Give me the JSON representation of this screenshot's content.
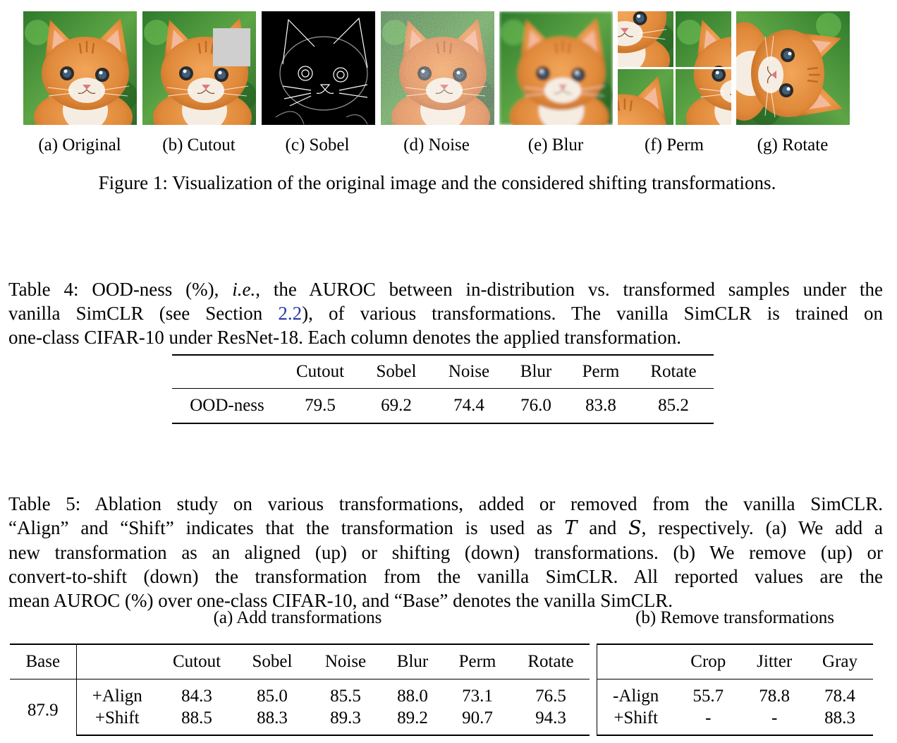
{
  "figure1": {
    "subcaptions": [
      "(a) Original",
      "(b) Cutout",
      "(c) Sobel",
      "(d) Noise",
      "(e) Blur",
      "(f) Perm",
      "(g) Rotate"
    ],
    "caption": "Figure 1: Visualization of the original image and the considered shifting transformations."
  },
  "table4": {
    "caption_lines": [
      [
        "Table 4: OOD-ness (%), ",
        "i.e.",
        ", the AUROC between in-distribution vs. transformed samples under the"
      ],
      [
        "vanilla SimCLR (see Section ",
        "2.2",
        "), of various transformations. The vanilla SimCLR is trained on"
      ],
      [
        "one-class CIFAR-10 under ResNet-18. Each column denotes the applied transformation."
      ]
    ],
    "headers": [
      "",
      "Cutout",
      "Sobel",
      "Noise",
      "Blur",
      "Perm",
      "Rotate"
    ],
    "rows": [
      [
        "OOD-ness",
        "79.5",
        "69.2",
        "74.4",
        "76.0",
        "83.8",
        "85.2"
      ]
    ]
  },
  "table5": {
    "caption_lines": [
      "Table 5: Ablation study on various transformations, added or removed from the vanilla SimCLR.",
      [
        "“Align” and “Shift” indicates that the transformation is used as ",
        "T",
        " and ",
        "S",
        ", respectively. (a) We add a"
      ],
      "new transformation as an aligned (up) or shifting (down) transformations. (b) We remove (up) or",
      "convert-to-shift (down) the transformation from the vanilla SimCLR. All reported values are the",
      "mean AUROC (%) over one-class CIFAR-10, and “Base” denotes the vanilla SimCLR."
    ],
    "sub_a": {
      "title": "(a) Add transformations",
      "headers": [
        "Base",
        "",
        "Cutout",
        "Sobel",
        "Noise",
        "Blur",
        "Perm",
        "Rotate"
      ],
      "base": "87.9",
      "rows": [
        {
          "label": "+Align",
          "values": [
            "84.3",
            "85.0",
            "85.5",
            "88.0",
            "73.1",
            "76.5"
          ]
        },
        {
          "label": "+Shift",
          "values": [
            "88.5",
            "88.3",
            "89.3",
            "89.2",
            "90.7",
            "94.3"
          ]
        }
      ]
    },
    "sub_b": {
      "title": "(b) Remove transformations",
      "headers": [
        "",
        "Crop",
        "Jitter",
        "Gray"
      ],
      "rows": [
        {
          "label": "-Align",
          "values": [
            "55.7",
            "78.8",
            "78.4"
          ]
        },
        {
          "label": "+Shift",
          "values": [
            "-",
            "-",
            "88.3"
          ]
        }
      ]
    }
  },
  "colors": {
    "link": "#2a3aa8",
    "cat_fur": "#e0893a",
    "grass": "#3f8a36",
    "cutout_patch": "#cfcfcf"
  }
}
